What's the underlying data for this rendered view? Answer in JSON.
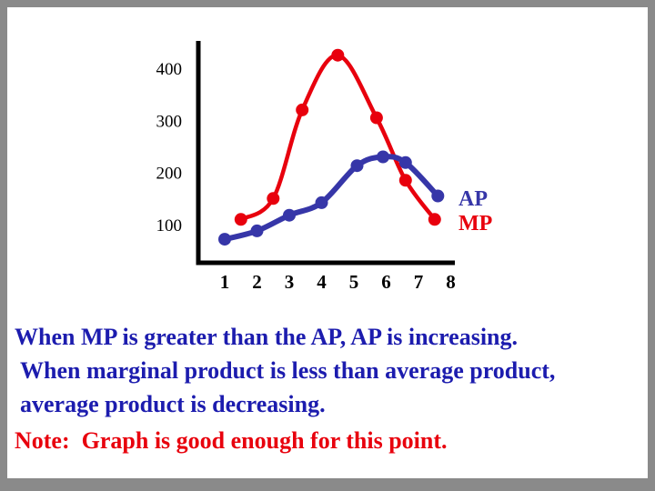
{
  "chart_data": {
    "type": "line",
    "title": "",
    "xlabel": "",
    "ylabel": "",
    "x_ticks": [
      1,
      2,
      3,
      4,
      5,
      6,
      7,
      8
    ],
    "y_ticks": [
      400,
      300,
      200,
      100
    ],
    "xlim": [
      0.5,
      8.5
    ],
    "ylim": [
      30,
      450
    ],
    "grid": false,
    "legend_position": "right",
    "series": [
      {
        "name": "MP",
        "color": "#e8000d",
        "stroke_width": 4.5,
        "points": [
          [
            1.5,
            110
          ],
          [
            2.5,
            150
          ],
          [
            3.4,
            320
          ],
          [
            4.5,
            425
          ],
          [
            5.7,
            305
          ],
          [
            6.6,
            185
          ],
          [
            7.5,
            110
          ]
        ]
      },
      {
        "name": "AP",
        "color": "#3636a8",
        "stroke_width": 6,
        "points": [
          [
            1,
            72
          ],
          [
            2,
            88
          ],
          [
            3,
            118
          ],
          [
            4,
            142
          ],
          [
            5.1,
            213
          ],
          [
            5.9,
            230
          ],
          [
            6.6,
            219
          ],
          [
            7.6,
            155
          ]
        ]
      }
    ]
  },
  "legend": {
    "ap": "AP",
    "mp": "MP"
  },
  "caption": {
    "line1": "When MP is greater than the AP, AP is increasing.",
    "line2": "When marginal product is less than average product, average product is decreasing.",
    "note": "Note:  Graph is good enough for this point."
  },
  "colors": {
    "text_blue": "#1c1cae",
    "text_red": "#e8000d",
    "curve_red": "#e8000d",
    "curve_blue": "#3636a8",
    "axis": "#000000",
    "frame": "#8a8a8a",
    "slide": "#ffffff"
  }
}
